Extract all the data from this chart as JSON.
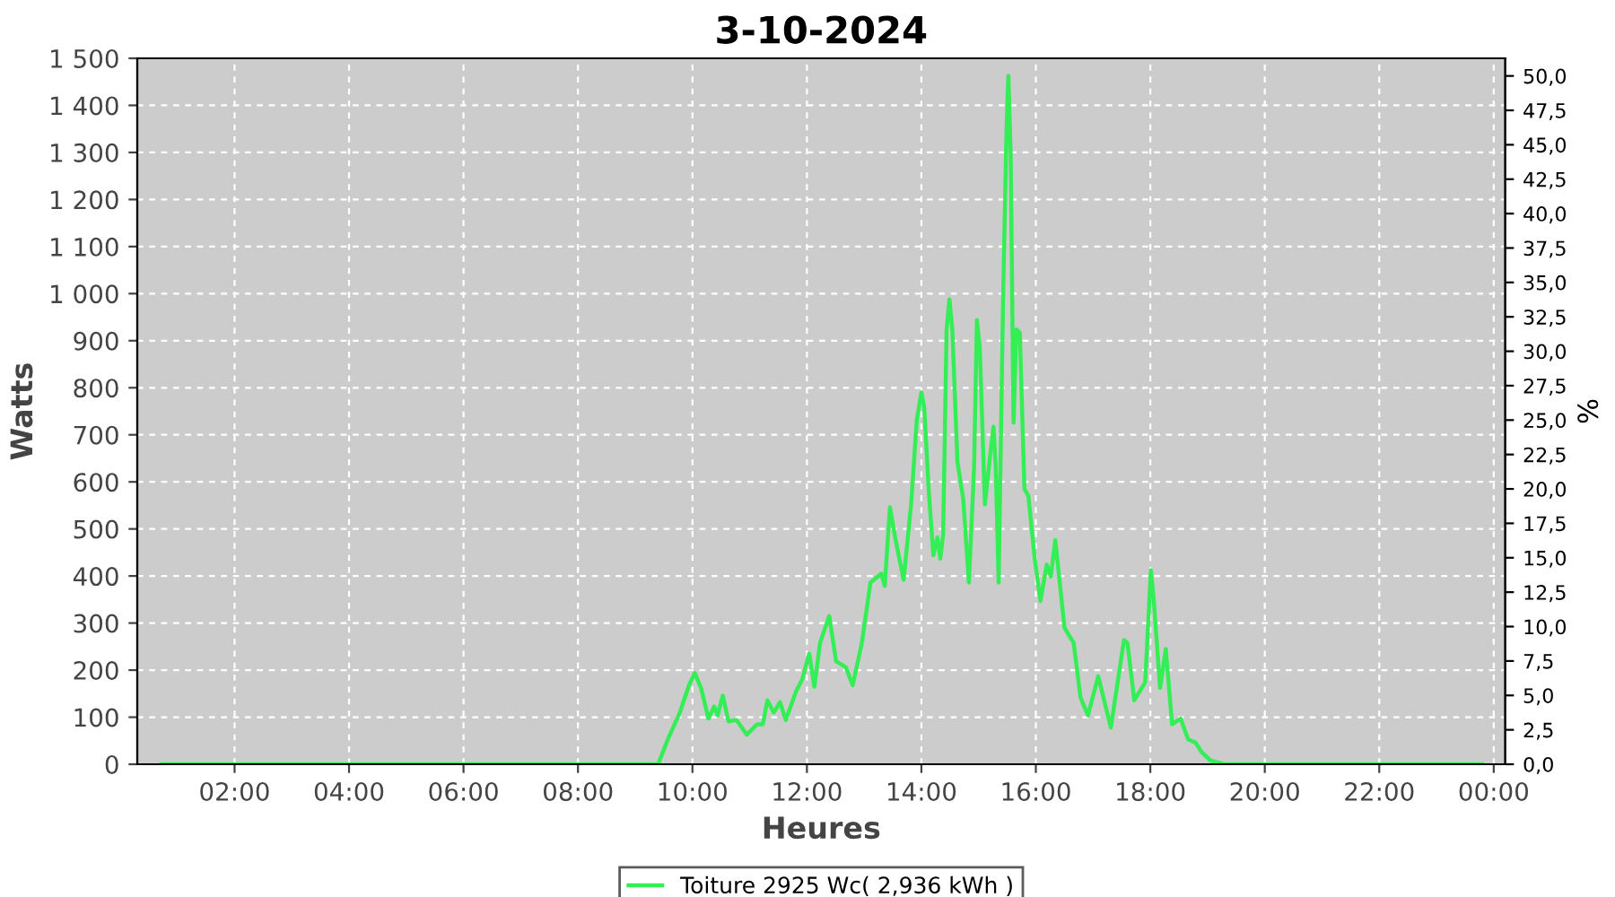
{
  "chart_data": {
    "type": "line",
    "title": "3-10-2024",
    "xlabel": "Heures",
    "ylabel": "Watts",
    "y2label": "%",
    "series": [
      {
        "name": "Toiture 2925 Wc( 2,936 kWh )",
        "color": "#33ee55",
        "x": [
          0.72,
          9.4,
          9.57,
          9.78,
          9.94,
          10.04,
          10.15,
          10.28,
          10.38,
          10.44,
          10.53,
          10.63,
          10.77,
          10.95,
          11.13,
          11.23,
          11.31,
          11.42,
          11.53,
          11.63,
          11.81,
          11.92,
          12.04,
          12.13,
          12.23,
          12.39,
          12.51,
          12.68,
          12.8,
          12.96,
          13.11,
          13.3,
          13.36,
          13.45,
          13.55,
          13.69,
          13.82,
          13.92,
          14.0,
          14.05,
          14.13,
          14.21,
          14.28,
          14.33,
          14.38,
          14.44,
          14.49,
          14.54,
          14.63,
          14.73,
          14.83,
          14.92,
          14.97,
          15.02,
          15.11,
          15.2,
          15.26,
          15.3,
          15.35,
          15.43,
          15.49,
          15.52,
          15.56,
          15.61,
          15.66,
          15.72,
          15.8,
          15.87,
          15.98,
          16.08,
          16.19,
          16.26,
          16.34,
          16.5,
          16.66,
          16.78,
          16.91,
          17.09,
          17.31,
          17.54,
          17.6,
          17.72,
          17.91,
          18.01,
          18.06,
          18.17,
          18.27,
          18.38,
          18.53,
          18.66,
          18.79,
          18.89,
          19.05,
          19.3,
          23.8
        ],
        "values": [
          0,
          0,
          53,
          110,
          168,
          194,
          162,
          97,
          123,
          104,
          146,
          91,
          94,
          63,
          85,
          85,
          136,
          110,
          132,
          94,
          155,
          181,
          235,
          165,
          258,
          315,
          219,
          206,
          168,
          258,
          386,
          405,
          379,
          546,
          476,
          392,
          552,
          732,
          790,
          758,
          578,
          444,
          482,
          437,
          488,
          924,
          988,
          924,
          642,
          565,
          386,
          629,
          944,
          886,
          552,
          655,
          717,
          629,
          386,
          1008,
          1360,
          1463,
          1296,
          726,
          924,
          917,
          585,
          570,
          437,
          347,
          424,
          399,
          476,
          290,
          258,
          142,
          104,
          187,
          78,
          264,
          258,
          136,
          174,
          412,
          349,
          162,
          245,
          85,
          97,
          53,
          46,
          27,
          8,
          0,
          0
        ]
      }
    ],
    "xlim": [
      0.3,
      24.2
    ],
    "xticks": [
      {
        "value": 2,
        "label": "02:00"
      },
      {
        "value": 4,
        "label": "04:00"
      },
      {
        "value": 6,
        "label": "06:00"
      },
      {
        "value": 8,
        "label": "08:00"
      },
      {
        "value": 10,
        "label": "10:00"
      },
      {
        "value": 12,
        "label": "12:00"
      },
      {
        "value": 14,
        "label": "14:00"
      },
      {
        "value": 16,
        "label": "16:00"
      },
      {
        "value": 18,
        "label": "18:00"
      },
      {
        "value": 20,
        "label": "20:00"
      },
      {
        "value": 22,
        "label": "22:00"
      },
      {
        "value": 24,
        "label": "00:00"
      }
    ],
    "ylim": [
      0,
      1500
    ],
    "yticks": [
      0,
      100,
      200,
      300,
      400,
      500,
      600,
      700,
      800,
      900,
      {
        "value": 1000,
        "label": "1 000"
      },
      {
        "value": 1100,
        "label": "1 100"
      },
      {
        "value": 1200,
        "label": "1 200"
      },
      {
        "value": 1300,
        "label": "1 300"
      },
      {
        "value": 1400,
        "label": "1 400"
      },
      {
        "value": 1500,
        "label": "1 500"
      }
    ],
    "y2lim": [
      0,
      51.28
    ],
    "y2ticks": [
      {
        "value": 0,
        "label": "0,0"
      },
      {
        "value": 2.5,
        "label": "2,5"
      },
      {
        "value": 5,
        "label": "5,0"
      },
      {
        "value": 7.5,
        "label": "7,5"
      },
      {
        "value": 10,
        "label": "10,0"
      },
      {
        "value": 12.5,
        "label": "12,5"
      },
      {
        "value": 15,
        "label": "15,0"
      },
      {
        "value": 17.5,
        "label": "17,5"
      },
      {
        "value": 20,
        "label": "20,0"
      },
      {
        "value": 22.5,
        "label": "22,5"
      },
      {
        "value": 25,
        "label": "25,0"
      },
      {
        "value": 27.5,
        "label": "27,5"
      },
      {
        "value": 30,
        "label": "30,0"
      },
      {
        "value": 32.5,
        "label": "32,5"
      },
      {
        "value": 35,
        "label": "35,0"
      },
      {
        "value": 37.5,
        "label": "37,5"
      },
      {
        "value": 40,
        "label": "40,0"
      },
      {
        "value": 42.5,
        "label": "42,5"
      },
      {
        "value": 45,
        "label": "45,0"
      },
      {
        "value": 47.5,
        "label": "47,5"
      },
      {
        "value": 50,
        "label": "50,0"
      }
    ],
    "grid": true,
    "legend": "bottom",
    "line_style": "solid",
    "marker": "none"
  }
}
